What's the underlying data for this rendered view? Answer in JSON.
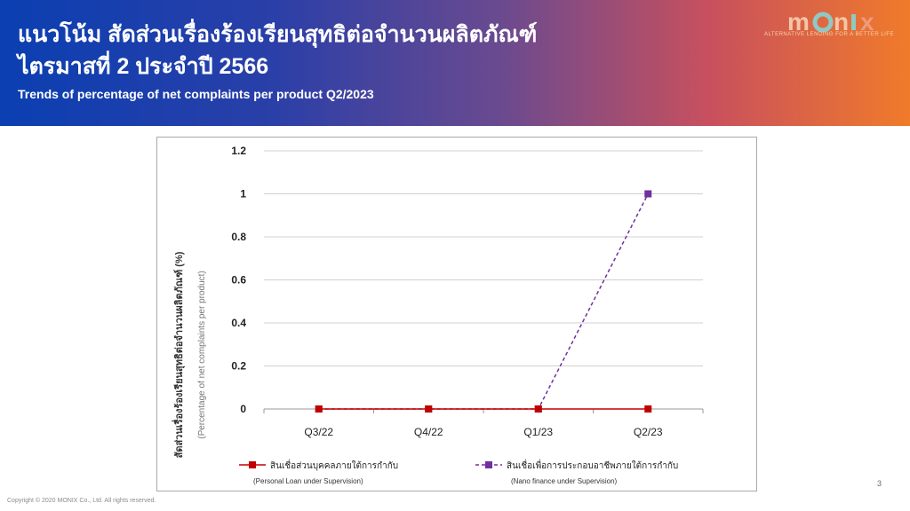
{
  "header": {
    "title_th_line1": "แนวโน้ม สัดส่วนเรื่องร้องเรียนสุทธิต่อจำนวนผลิตภัณฑ์",
    "title_th_line2": "ไตรมาสที่ 2 ประจำปี 2566",
    "title_en": "Trends of percentage of net complaints per product Q2/2023"
  },
  "logo": {
    "text": "MONIX",
    "tagline": "ALTERNATIVE LENDING FOR A BETTER LIFE",
    "colors": [
      "#f4c6a8",
      "#8fc8c4",
      "#f09a7a"
    ]
  },
  "footer": {
    "copyright": "Copyright © 2020 MONIX Co., Ltd. All rights reserved.",
    "page_number": "3"
  },
  "chart_data": {
    "type": "line",
    "categories": [
      "Q3/22",
      "Q4/22",
      "Q1/23",
      "Q2/23"
    ],
    "ylim": [
      0,
      1.2
    ],
    "yticks": [
      "0",
      "0.2",
      "0.4",
      "0.6",
      "0.8",
      "1",
      "1.2"
    ],
    "ylabel_th": "สัดส่วนเรื่องร้องเรียนสุทธิต่อจำนวนผลิตภัณฑ์ (%)",
    "ylabel_en": "(Percentage of net complaints per product)",
    "grid": true,
    "legend_position": "bottom",
    "series": [
      {
        "name_th": "สินเชื่อส่วนบุคคลภายใต้การกำกับ",
        "name_en": "(Personal Loan under Supervision)",
        "values": [
          0,
          0,
          0,
          0
        ],
        "color": "#c00000",
        "dash": "solid"
      },
      {
        "name_th": "สินเชื่อเพื่อการประกอบอาชีพภายใต้การกำกับ",
        "name_en": "(Nano finance under Supervision)",
        "values": [
          0,
          0,
          0,
          1
        ],
        "color": "#7030a0",
        "dash": "dashed"
      }
    ]
  }
}
